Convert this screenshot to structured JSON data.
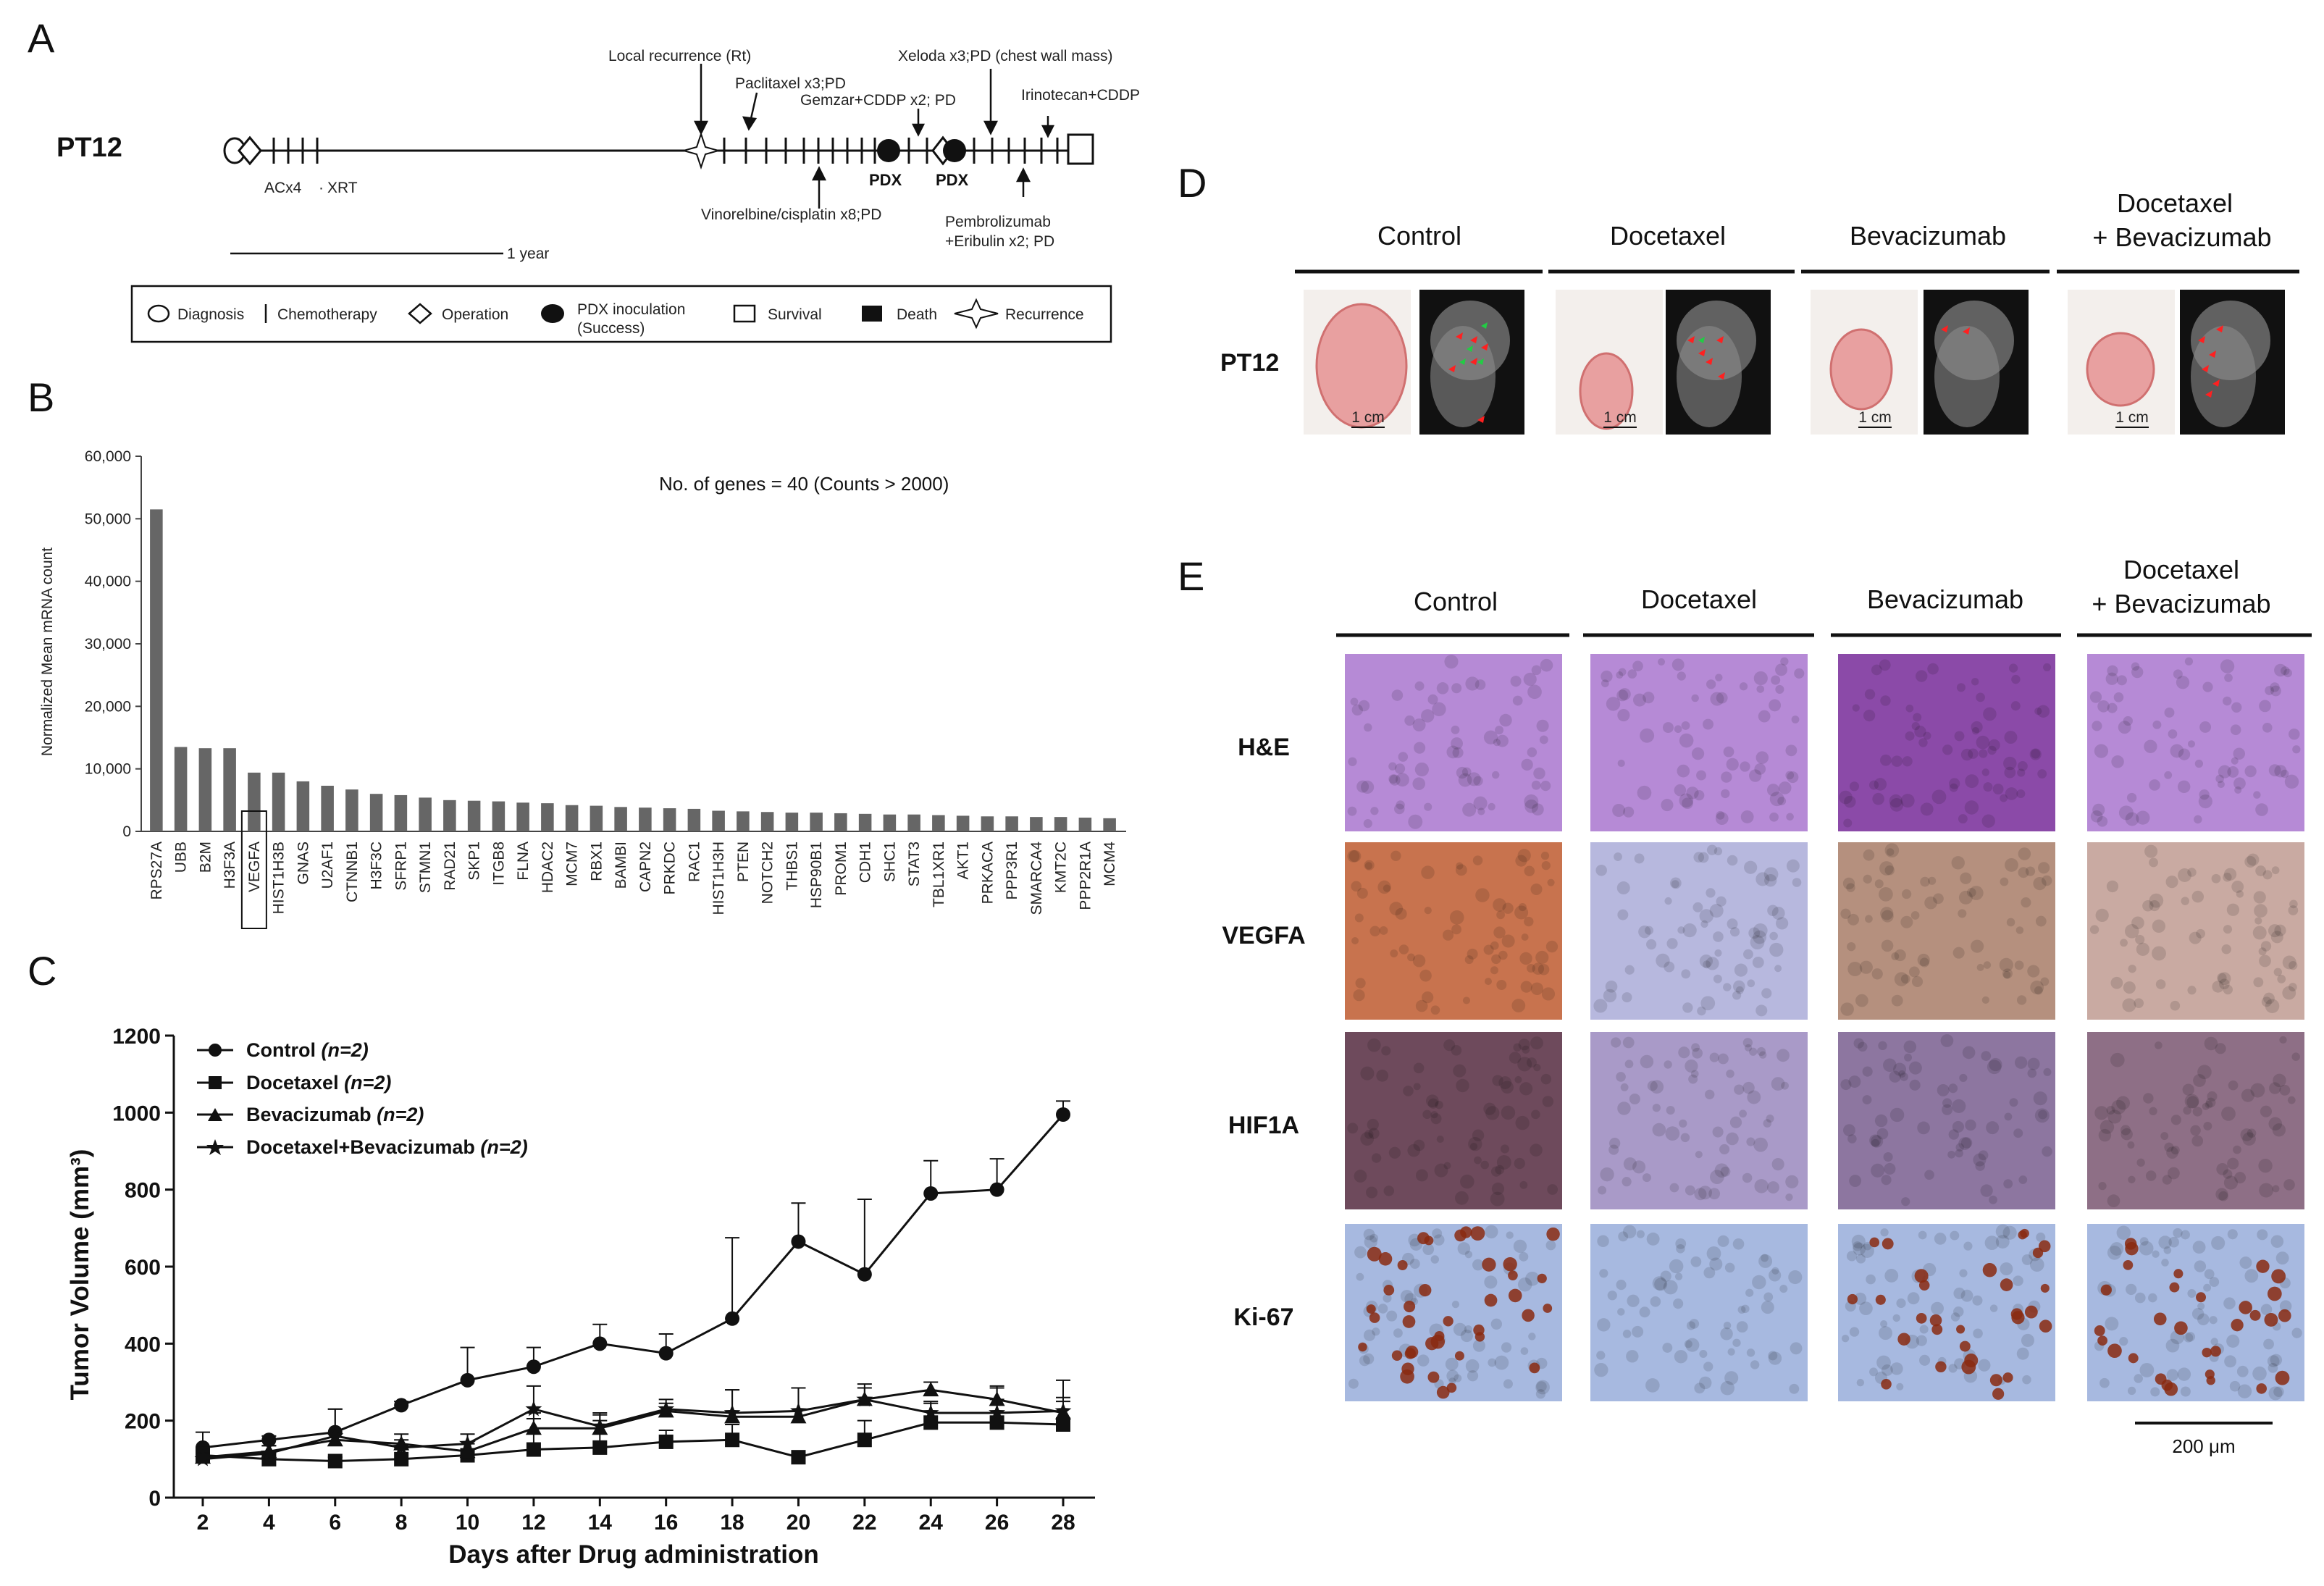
{
  "panels": {
    "a": "A",
    "b": "B",
    "c": "C",
    "d": "D",
    "e": "E"
  },
  "timeline": {
    "patient": "PT12",
    "events": {
      "local_recurrence": "Local recurrence (Rt)",
      "paclitaxel": "Paclitaxel x3;PD",
      "gemzar": "Gemzar+CDDP x2; PD",
      "xeloda": "Xeloda x3;PD (chest wall mass)",
      "irinotecan": "Irinotecan+CDDP",
      "vinorelbine": "Vinorelbine/cisplatin x8;PD",
      "pembrolizumab_1": "Pembrolizumab",
      "pembrolizumab_2": "+Eribulin x2; PD",
      "acx4": "ACx4",
      "xrt": "XRT",
      "pdx1": "PDX",
      "pdx2": "PDX"
    },
    "scale_label": "1 year",
    "legend": {
      "diagnosis": "Diagnosis",
      "chemotherapy": "Chemotherapy",
      "operation": "Operation",
      "pdx_1": "PDX inoculation",
      "pdx_2": "(Success)",
      "survival": "Survival",
      "death": "Death",
      "recurrence": "Recurrence"
    }
  },
  "bar_panel": {
    "annotation": "No. of genes = 40 (Counts > 2000)",
    "ylabel": "Normalized Mean mRNA count",
    "highlight": "VEGFA",
    "bar_color": "#666666"
  },
  "line_panel": {
    "xlabel": "Days after Drug administration",
    "ylabel": "Tumor Volume (mm³)",
    "legend": [
      {
        "name": "Control",
        "n": "(n=2)"
      },
      {
        "name": "Docetaxel",
        "n": "(n=2)"
      },
      {
        "name": "Bevacizumab",
        "n": "(n=2)"
      },
      {
        "name": "Docetaxel+Bevacizumab",
        "n": "(n=2)"
      }
    ]
  },
  "panel_d": {
    "columns": [
      "Control",
      "Docetaxel",
      "Bevacizumab"
    ],
    "combo_1": "Docetaxel",
    "combo_2": "+ Bevacizumab",
    "row_label": "PT12",
    "scale": "1 cm",
    "tumor_color": "#e8a0a0",
    "arrow_color": "#ff2020",
    "marker_color": "#22cc44"
  },
  "panel_e": {
    "columns": [
      "Control",
      "Docetaxel",
      "Bevacizumab"
    ],
    "combo_1": "Docetaxel",
    "combo_2": "+ Bevacizumab",
    "rows": [
      "H&E",
      "VEGFA",
      "HIF1A",
      "Ki-67"
    ],
    "scale": "200 μm",
    "stain_colors": {
      "he": "#b68ad6",
      "vegfa_high": "#c8734e",
      "vegfa_low": "#b7b8de",
      "hif1a_high": "#6e4a5c",
      "hif1a_low": "#a99ac8",
      "ki67_bg": "#a7b9e0",
      "ki67_pos": "#8a2a10"
    }
  },
  "chart_data": [
    {
      "type": "bar",
      "categories": [
        "RPS27A",
        "UBB",
        "B2M",
        "H3F3A",
        "VEGFA",
        "HIST1H3B",
        "GNAS",
        "U2AF1",
        "CTNNB1",
        "H3F3C",
        "SFRP1",
        "STMN1",
        "RAD21",
        "SKP1",
        "ITGB8",
        "FLNA",
        "HDAC2",
        "MCM7",
        "RBX1",
        "BAMBI",
        "CAPN2",
        "PRKDC",
        "RAC1",
        "HIST1H3H",
        "PTEN",
        "NOTCH2",
        "THBS1",
        "HSP90B1",
        "PROM1",
        "CDH1",
        "SHC1",
        "STAT3",
        "TBL1XR1",
        "AKT1",
        "PRKACA",
        "PPP3R1",
        "SMARCA4",
        "KMT2C",
        "PPP2R1A",
        "MCM4"
      ],
      "values": [
        51500,
        13500,
        13300,
        13300,
        9400,
        9400,
        8000,
        7300,
        6700,
        6000,
        5800,
        5400,
        5000,
        4900,
        4800,
        4600,
        4500,
        4200,
        4100,
        3900,
        3800,
        3700,
        3600,
        3300,
        3200,
        3100,
        3000,
        3000,
        2900,
        2800,
        2700,
        2700,
        2600,
        2500,
        2400,
        2400,
        2300,
        2300,
        2200,
        2100
      ],
      "ylabel": "Normalized Mean mRNA count",
      "ylim": [
        0,
        60000
      ],
      "yticks": [
        "0",
        "10,000",
        "20,000",
        "30,000",
        "40,000",
        "50,000",
        "60,000"
      ]
    },
    {
      "type": "line",
      "x": [
        2,
        4,
        6,
        8,
        10,
        12,
        14,
        16,
        18,
        20,
        22,
        24,
        26,
        28
      ],
      "xlabel": "Days after Drug administration",
      "ylabel": "Tumor Volume (mm³)",
      "ylim": [
        0,
        1200
      ],
      "yticks": [
        0,
        200,
        400,
        600,
        800,
        1000,
        1200
      ],
      "series": [
        {
          "name": "Control (n=2)",
          "marker": "circle",
          "values": [
            130,
            150,
            170,
            240,
            305,
            340,
            400,
            375,
            465,
            665,
            580,
            790,
            800,
            995
          ],
          "err": [
            40,
            10,
            60,
            10,
            85,
            50,
            50,
            50,
            210,
            100,
            195,
            85,
            80,
            35
          ]
        },
        {
          "name": "Docetaxel (n=2)",
          "marker": "square",
          "values": [
            110,
            100,
            95,
            100,
            110,
            125,
            130,
            145,
            150,
            105,
            150,
            195,
            195,
            190
          ],
          "err": [
            20,
            15,
            10,
            30,
            15,
            80,
            70,
            30,
            40,
            10,
            50,
            55,
            60,
            70
          ]
        },
        {
          "name": "Bevacizumab (n=2)",
          "marker": "triangle",
          "values": [
            105,
            120,
            150,
            140,
            120,
            180,
            180,
            225,
            210,
            210,
            255,
            280,
            255,
            220
          ],
          "err": [
            10,
            15,
            15,
            25,
            20,
            40,
            40,
            20,
            70,
            75,
            30,
            20,
            30,
            30
          ]
        },
        {
          "name": "Docetaxel+Bevacizumab (n=2)",
          "marker": "star",
          "values": [
            100,
            115,
            160,
            130,
            140,
            230,
            185,
            230,
            220,
            225,
            255,
            220,
            220,
            225
          ],
          "err": [
            10,
            20,
            70,
            20,
            25,
            60,
            30,
            25,
            60,
            60,
            40,
            25,
            70,
            80
          ]
        }
      ]
    }
  ]
}
